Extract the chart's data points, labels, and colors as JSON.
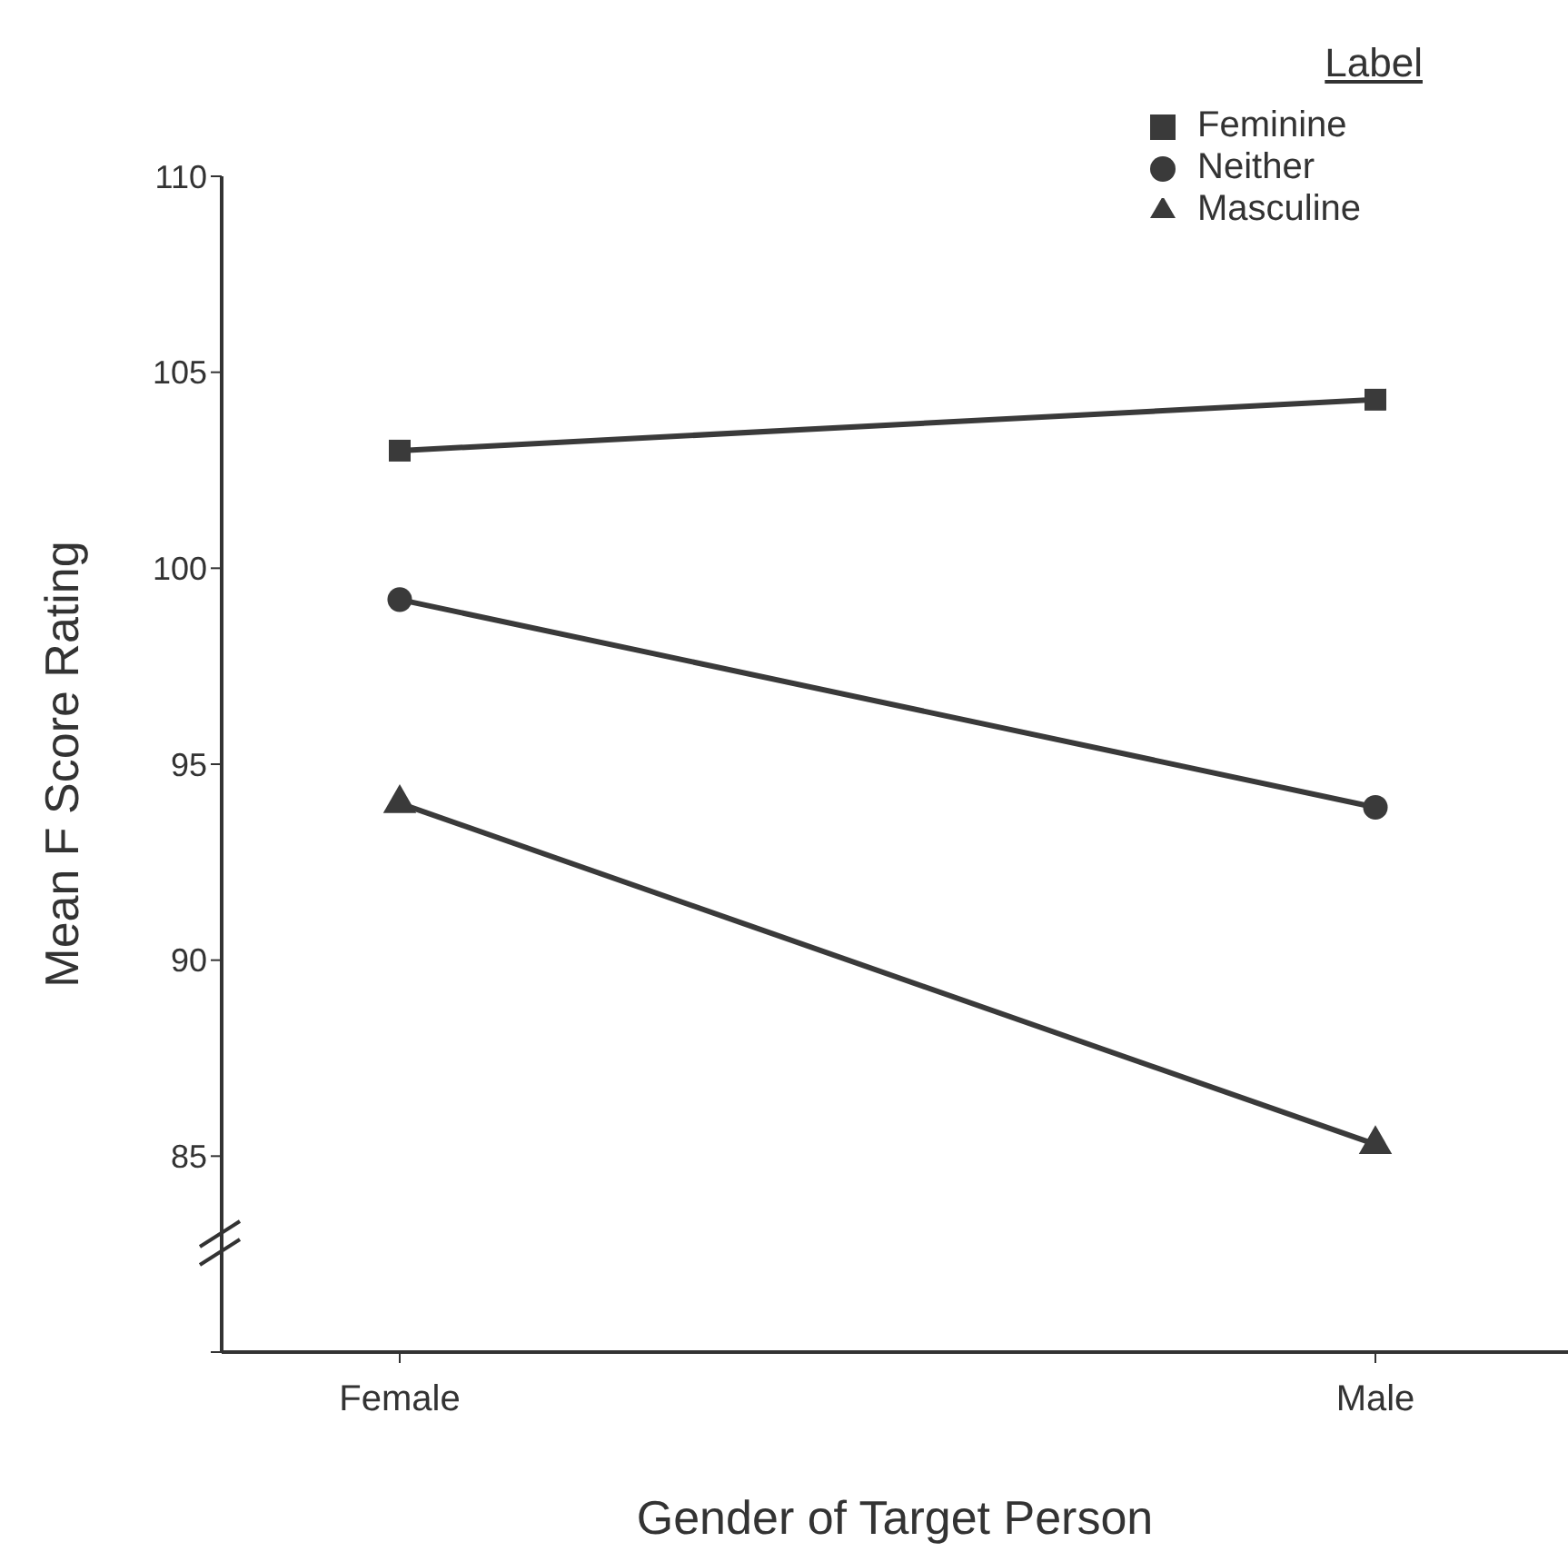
{
  "chart_data": {
    "type": "line",
    "xlabel": "Gender of Target Person",
    "ylabel": "Mean F Score Rating",
    "legend_title": "Label",
    "categories": [
      "Female",
      "Male"
    ],
    "series": [
      {
        "name": "Feminine",
        "color": "#3a3a3a",
        "marker": "square",
        "values": [
          103.0,
          104.3
        ]
      },
      {
        "name": "Neither",
        "color": "#3a3a3a",
        "marker": "circle",
        "values": [
          99.2,
          93.9
        ]
      },
      {
        "name": "Masculine",
        "color": "#3a3a3a",
        "marker": "triangle",
        "values": [
          94.0,
          85.3
        ]
      }
    ],
    "ylim": [
      80,
      110
    ],
    "yticks": [
      {
        "value": 80,
        "label": null
      },
      85,
      90,
      95,
      100,
      105,
      110
    ],
    "grid": false,
    "legend": "top right",
    "line_style": "solid"
  }
}
